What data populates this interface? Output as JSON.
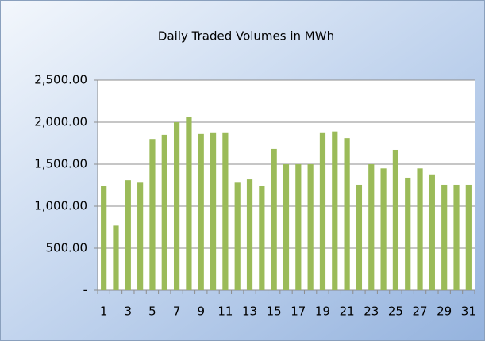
{
  "chart_data": {
    "type": "bar",
    "title": "Daily Traded Volumes in MWh",
    "categories": [
      "1",
      null,
      "3",
      null,
      "5",
      null,
      "7",
      null,
      "9",
      null,
      "11",
      null,
      "13",
      null,
      "15",
      null,
      "17",
      null,
      "19",
      null,
      "21",
      null,
      "23",
      null,
      "25",
      null,
      "27",
      null,
      "29",
      null,
      "31"
    ],
    "values": [
      1240,
      770,
      1310,
      1280,
      1800,
      1850,
      2000,
      2060,
      1860,
      1870,
      1870,
      1280,
      1320,
      1240,
      1680,
      1500,
      1500,
      1500,
      1870,
      1890,
      1810,
      1255,
      1500,
      1450,
      1670,
      1340,
      1450,
      1370,
      1255,
      1255,
      1255
    ],
    "color": "#9bbb59",
    "ylim": [
      0,
      2500
    ],
    "yticks": [
      {
        "value": 0,
        "label": "-"
      },
      {
        "value": 500,
        "label": "500.00"
      },
      {
        "value": 1000,
        "label": "1,000.00"
      },
      {
        "value": 1500,
        "label": "1,500.00"
      },
      {
        "value": 2000,
        "label": "2,000.00"
      },
      {
        "value": 2500,
        "label": "2,500.00"
      }
    ],
    "grid": true
  }
}
